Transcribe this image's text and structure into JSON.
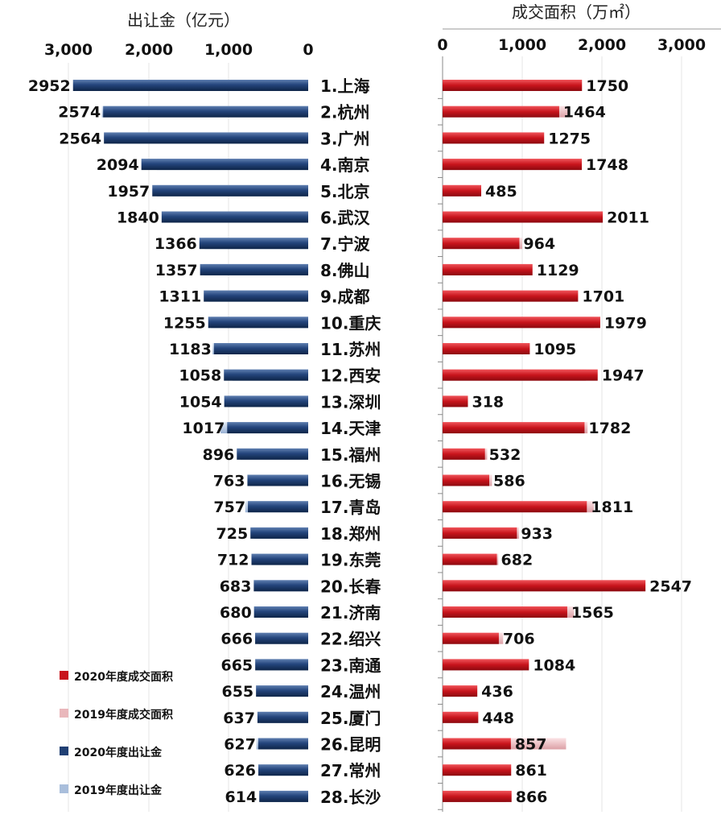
{
  "chart_data": [
    {
      "type": "bar",
      "title": "出让金（亿元）",
      "orientation": "horizontal-reversed",
      "xlim": [
        0,
        3000
      ],
      "ticks": [
        "3,000",
        "2,000",
        "1,000",
        "0"
      ],
      "categories": [
        "1.上海",
        "2.杭州",
        "3.广州",
        "4.南京",
        "5.北京",
        "6.武汉",
        "7.宁波",
        "8.佛山",
        "9.成都",
        "10.重庆",
        "11.苏州",
        "12.西安",
        "13.深圳",
        "14.天津",
        "15.福州",
        "16.无锡",
        "17.青岛",
        "18.郑州",
        "19.东莞",
        "20.长春",
        "21.济南",
        "22.绍兴",
        "23.南通",
        "24.温州",
        "25.厦门",
        "26.昆明",
        "27.常州",
        "28.长沙"
      ],
      "series": [
        {
          "name": "2020年度出让金",
          "color": "#1f3f73",
          "values": [
            2952,
            2574,
            2564,
            2094,
            1957,
            1840,
            1366,
            1357,
            1311,
            1255,
            1183,
            1058,
            1054,
            1017,
            896,
            763,
            757,
            725,
            712,
            683,
            680,
            666,
            665,
            655,
            637,
            627,
            626,
            614
          ]
        },
        {
          "name": "2019年度出让金",
          "color": "#a9bedb",
          "values": [
            2900,
            2590,
            2400,
            1900,
            1900,
            1700,
            1300,
            1300,
            1250,
            1220,
            1200,
            950,
            1000,
            1100,
            850,
            700,
            790,
            680,
            650,
            640,
            650,
            620,
            600,
            620,
            600,
            650,
            600,
            580
          ]
        }
      ]
    },
    {
      "type": "bar",
      "title": "成交面积（万㎡）",
      "orientation": "horizontal",
      "xlim": [
        0,
        3000
      ],
      "ticks": [
        "0",
        "1,000",
        "2,000",
        "3,000"
      ],
      "categories": [
        "1.上海",
        "2.杭州",
        "3.广州",
        "4.南京",
        "5.北京",
        "6.武汉",
        "7.宁波",
        "8.佛山",
        "9.成都",
        "10.重庆",
        "11.苏州",
        "12.西安",
        "13.深圳",
        "14.天津",
        "15.福州",
        "16.无锡",
        "17.青岛",
        "18.郑州",
        "19.东莞",
        "20.长春",
        "21.济南",
        "22.绍兴",
        "23.南通",
        "24.温州",
        "25.厦门",
        "26.昆明",
        "27.常州",
        "28.长沙"
      ],
      "series": [
        {
          "name": "2020年度成交面积",
          "color": "#c8141c",
          "values": [
            1750,
            1464,
            1275,
            1748,
            485,
            2011,
            964,
            1129,
            1701,
            1979,
            1095,
            1947,
            318,
            1782,
            532,
            586,
            1811,
            933,
            682,
            2547,
            1565,
            706,
            1084,
            436,
            448,
            857,
            861,
            866
          ]
        },
        {
          "name": "2019年度成交面积",
          "color": "#e9b7bb",
          "values": [
            1500,
            1600,
            1200,
            1600,
            450,
            1900,
            1000,
            1050,
            1650,
            1900,
            1000,
            1800,
            300,
            1820,
            560,
            620,
            1900,
            960,
            700,
            2350,
            1650,
            760,
            1000,
            400,
            420,
            1550,
            820,
            800
          ]
        }
      ]
    }
  ],
  "legend": [
    {
      "label": "2020年度成交面积",
      "color": "#c8141c"
    },
    {
      "label": "2019年度成交面积",
      "color": "#e9b7bb"
    },
    {
      "label": "2020年度出让金",
      "color": "#1f3f73"
    },
    {
      "label": "2019年度出让金",
      "color": "#a9bedb"
    }
  ]
}
